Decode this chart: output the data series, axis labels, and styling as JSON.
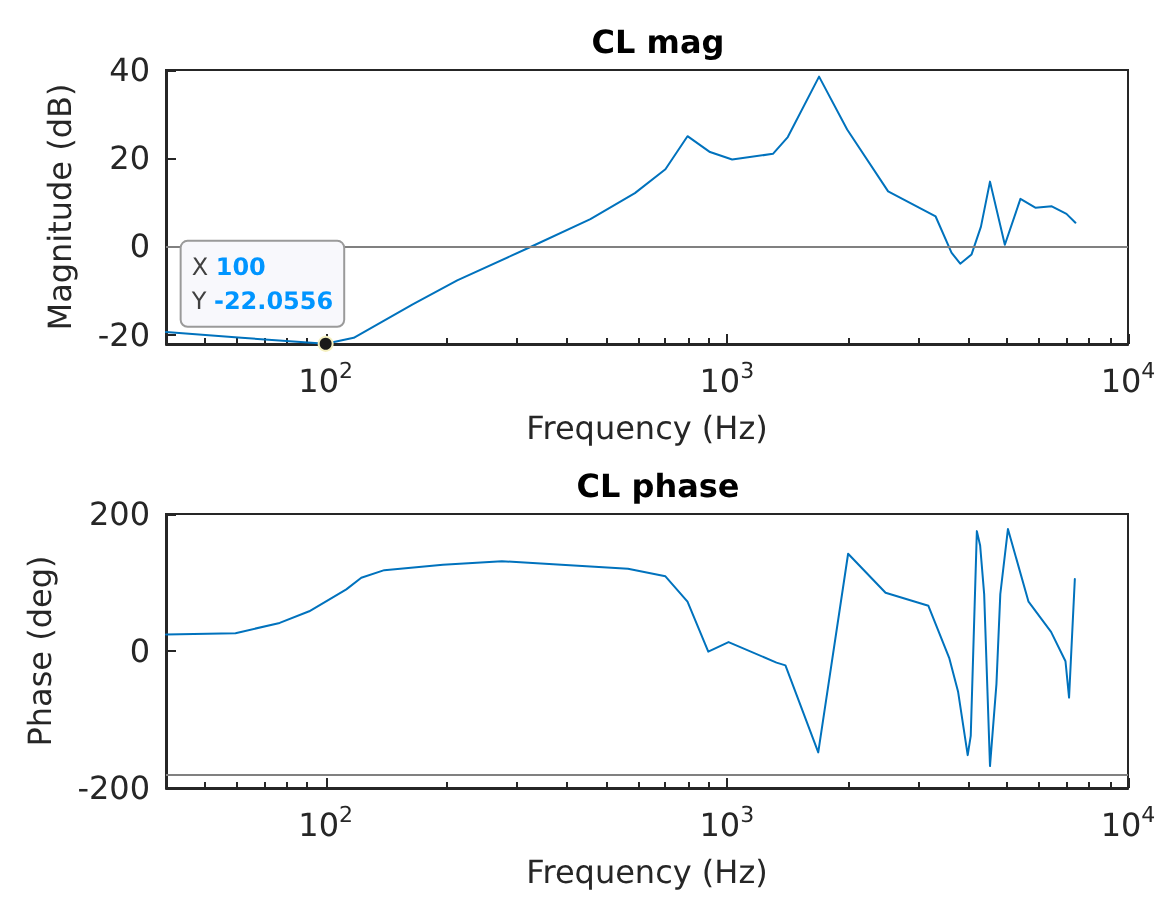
{
  "chart_data": [
    {
      "type": "line",
      "title": "CL mag",
      "xlabel": "Frequency (Hz)",
      "ylabel": "Magnitude (dB)",
      "log": "x",
      "grid": false,
      "xlim": [
        40,
        10000
      ],
      "xticks": [
        {
          "value": 100,
          "label": "10$^{2}$"
        },
        {
          "value": 1000,
          "label": "10$^{3}$"
        },
        {
          "value": 10000,
          "label": "10$^{4}$"
        }
      ],
      "ylim": [
        -22.1,
        40
      ],
      "yticks": [
        -20,
        0,
        20,
        40
      ],
      "ref_lines": [
        {
          "axis": "y",
          "value": 0,
          "color": "#808080"
        }
      ],
      "annotations": [
        {
          "text": "X 100\nY -22.0556",
          "x": 100,
          "y": -22.0556
        }
      ],
      "series": [
        {
          "color": "#0072bd",
          "x": [
            40,
            61.7,
            100,
            117.5,
            164.8,
            212.8,
            326,
            457,
            590,
            703,
            798,
            908,
            1031,
            1303,
            1419,
            1698,
            1995,
            2524,
            3315,
            3631,
            3818,
            4074,
            4300,
            4529,
            4932,
            5394,
            5875,
            6457,
            7025,
            7396
          ],
          "values": [
            -19.4,
            -20.7,
            -22.0556,
            -20.7,
            -13.1,
            -7.7,
            0,
            6.2,
            12.1,
            17.5,
            25,
            21.4,
            19.7,
            21,
            24.8,
            38.5,
            26.5,
            12.5,
            6.8,
            -1.4,
            -3.9,
            -1.8,
            4.5,
            14.7,
            0.4,
            10.8,
            8.8,
            9.1,
            7.4,
            5.4
          ]
        }
      ]
    },
    {
      "type": "line",
      "title": "CL phase",
      "xlabel": "Frequency (Hz)",
      "ylabel": "Phase (deg)",
      "log": "x",
      "grid": false,
      "xlim": [
        40,
        10000
      ],
      "xticks": [
        {
          "value": 100,
          "label": "10$^{2}$"
        },
        {
          "value": 1000,
          "label": "10$^{3}$"
        },
        {
          "value": 10000,
          "label": "10$^{4}$"
        }
      ],
      "ylim": [
        -200,
        200
      ],
      "yticks": [
        -200,
        0,
        200
      ],
      "ref_lines": [
        {
          "axis": "y",
          "value": -180,
          "color": "#808080"
        }
      ],
      "series": [
        {
          "color": "#0072bd",
          "x": [
            40,
            59.6,
            76.8,
            91,
            112.6,
            122.7,
            140,
            196,
            275,
            387,
            567,
            703,
            798,
            899,
            1010,
            1330,
            1400,
            1690,
            2006,
            2487,
            3180,
            3583,
            3770,
            3985,
            4055,
            4200,
            4280,
            4380,
            4529,
            4700,
            4805,
            5020,
            5650,
            6430,
            6985,
            7130,
            7370
          ],
          "values": [
            24,
            26,
            41,
            58,
            90,
            107,
            118,
            126,
            131,
            126,
            120,
            109,
            72,
            -1,
            13,
            -17,
            -21,
            -148,
            142,
            85,
            66,
            -10,
            -59,
            -152,
            -124,
            175,
            154,
            83,
            -168,
            -48,
            83,
            178,
            72,
            28,
            -15,
            -68,
            105
          ]
        }
      ]
    }
  ]
}
